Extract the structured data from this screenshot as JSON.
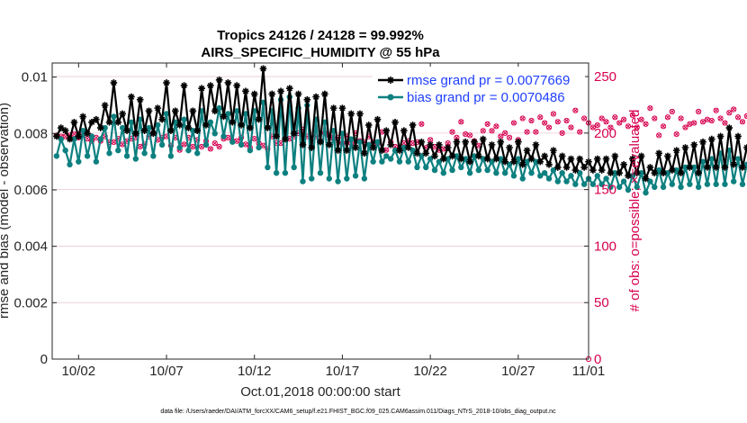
{
  "chart_data": {
    "type": "line",
    "title_line1": "Tropics 24126 / 24128 = 99.992%",
    "title_line2": "AIRS_SPECIFIC_HUMIDITY @ 55 hPa",
    "xlabel": "Oct.01,2018 00:00:00 start",
    "ylabel_left": "rmse and bias (model - observation)",
    "ylabel_right": "# of obs: o=possible; ×=evaluated",
    "xlim": [
      0.5,
      31
    ],
    "ylim_left": [
      0,
      0.0105
    ],
    "ylim_right": [
      0,
      262
    ],
    "x_ticks": [
      2,
      7,
      12,
      17,
      22,
      27,
      32
    ],
    "x_tick_labels": [
      "10/02",
      "10/07",
      "10/12",
      "10/17",
      "10/22",
      "10/27",
      "11/01"
    ],
    "y_left_ticks": [
      0,
      0.002,
      0.004,
      0.006,
      0.008,
      0.01
    ],
    "y_left_tick_labels": [
      "0",
      "0.002",
      "0.004",
      "0.006",
      "0.008",
      "0.01"
    ],
    "y_right_ticks": [
      0,
      50,
      100,
      150,
      200,
      250
    ],
    "y_right_tick_labels": [
      "0",
      "50",
      "100",
      "150",
      "200",
      "250"
    ],
    "colors": {
      "rmse": "#000000",
      "bias": "#0e8080",
      "counts": "#d6004f",
      "grid": "#e8c8d2",
      "legend_text": "#1f3fff"
    },
    "legend": [
      {
        "name": "rmse grand pr = 0.0077669",
        "series": "rmse"
      },
      {
        "name": "bias grand pr = 0.0070486",
        "series": "bias"
      }
    ],
    "x_start": 0.75,
    "x_step": 0.25,
    "series": [
      {
        "name": "rmse",
        "values": [
          0.0079,
          0.0082,
          0.0081,
          0.0078,
          0.0084,
          0.0079,
          0.0086,
          0.008,
          0.0084,
          0.0085,
          0.0082,
          0.009,
          0.0084,
          0.0098,
          0.0084,
          0.0087,
          0.0081,
          0.0093,
          0.008,
          0.0092,
          0.0081,
          0.0088,
          0.008,
          0.0089,
          0.0085,
          0.0098,
          0.0081,
          0.0088,
          0.0083,
          0.0097,
          0.0082,
          0.0088,
          0.0081,
          0.0096,
          0.0083,
          0.0097,
          0.0088,
          0.0099,
          0.0086,
          0.0098,
          0.0084,
          0.0097,
          0.0083,
          0.0095,
          0.0082,
          0.0094,
          0.0085,
          0.0103,
          0.0082,
          0.0094,
          0.0079,
          0.0095,
          0.0078,
          0.0096,
          0.008,
          0.0094,
          0.0076,
          0.0092,
          0.0075,
          0.0093,
          0.0077,
          0.0094,
          0.0076,
          0.0089,
          0.0074,
          0.0089,
          0.0074,
          0.0087,
          0.0075,
          0.0087,
          0.0073,
          0.0083,
          0.0075,
          0.0085,
          0.0074,
          0.0081,
          0.0076,
          0.0084,
          0.0074,
          0.0081,
          0.0075,
          0.0083,
          0.0073,
          0.0077,
          0.0073,
          0.0076,
          0.0072,
          0.0076,
          0.0071,
          0.0075,
          0.0072,
          0.0077,
          0.0071,
          0.0077,
          0.007,
          0.0077,
          0.0072,
          0.0078,
          0.0071,
          0.0076,
          0.0071,
          0.0077,
          0.007,
          0.0075,
          0.007,
          0.0077,
          0.0069,
          0.0074,
          0.0071,
          0.0076,
          0.007,
          0.0072,
          0.0069,
          0.0074,
          0.0068,
          0.0072,
          0.0068,
          0.0071,
          0.0067,
          0.0071,
          0.0068,
          0.007,
          0.0067,
          0.0071,
          0.0067,
          0.0071,
          0.0066,
          0.0072,
          0.0066,
          0.0069,
          0.0065,
          0.0071,
          0.0066,
          0.0072,
          0.0064,
          0.0068,
          0.0066,
          0.0073,
          0.0066,
          0.0072,
          0.0067,
          0.0074,
          0.0066,
          0.0075,
          0.0068,
          0.0076,
          0.0066,
          0.0077,
          0.0068,
          0.0078,
          0.0068,
          0.0079,
          0.0068,
          0.0082,
          0.0069,
          0.0079,
          0.0068,
          0.0075,
          0.0069,
          0.0074,
          0.0068,
          0.0077,
          0.0068,
          0.0072
        ]
      },
      {
        "name": "bias",
        "values": [
          0.0072,
          0.0078,
          0.0074,
          0.0069,
          0.0078,
          0.007,
          0.0081,
          0.0072,
          0.0079,
          0.007,
          0.0078,
          0.0082,
          0.0073,
          0.0086,
          0.0074,
          0.0082,
          0.0072,
          0.0084,
          0.0071,
          0.0085,
          0.0073,
          0.0082,
          0.0072,
          0.0083,
          0.0076,
          0.0087,
          0.0072,
          0.0084,
          0.0075,
          0.0085,
          0.0074,
          0.0081,
          0.0073,
          0.0088,
          0.0076,
          0.0084,
          0.008,
          0.0089,
          0.0079,
          0.0087,
          0.0077,
          0.0088,
          0.0076,
          0.0087,
          0.0074,
          0.0088,
          0.0075,
          0.0091,
          0.0068,
          0.0088,
          0.0066,
          0.0092,
          0.0066,
          0.0093,
          0.0068,
          0.0089,
          0.0063,
          0.009,
          0.0064,
          0.0085,
          0.0066,
          0.0084,
          0.0064,
          0.0081,
          0.0063,
          0.008,
          0.0064,
          0.0078,
          0.0065,
          0.0077,
          0.0064,
          0.0076,
          0.007,
          0.0077,
          0.007,
          0.0072,
          0.0071,
          0.0074,
          0.007,
          0.0075,
          0.007,
          0.0074,
          0.0068,
          0.0072,
          0.0068,
          0.0071,
          0.0067,
          0.007,
          0.0066,
          0.0071,
          0.0067,
          0.0072,
          0.0068,
          0.0071,
          0.0066,
          0.0072,
          0.0067,
          0.0071,
          0.0067,
          0.007,
          0.0066,
          0.0071,
          0.0066,
          0.0069,
          0.0065,
          0.0071,
          0.0064,
          0.007,
          0.0066,
          0.007,
          0.0065,
          0.0066,
          0.0064,
          0.0067,
          0.0063,
          0.0066,
          0.0063,
          0.0065,
          0.0062,
          0.0066,
          0.0062,
          0.0064,
          0.0062,
          0.0065,
          0.0062,
          0.0064,
          0.0061,
          0.0066,
          0.0061,
          0.0063,
          0.006,
          0.0065,
          0.0061,
          0.0066,
          0.0059,
          0.0063,
          0.0061,
          0.0067,
          0.0061,
          0.0066,
          0.0062,
          0.0067,
          0.0061,
          0.0068,
          0.0062,
          0.0068,
          0.0061,
          0.007,
          0.0062,
          0.0071,
          0.0062,
          0.0073,
          0.0062,
          0.0074,
          0.0063,
          0.0071,
          0.0062,
          0.0069,
          0.0063,
          0.0066,
          0.0062,
          0.0069,
          0.0063,
          0.0066
        ]
      },
      {
        "name": "counts",
        "values": [
          198,
          197,
          197,
          198,
          199,
          196,
          200,
          195,
          193,
          196,
          193,
          197,
          192,
          192,
          195,
          190,
          193,
          195,
          196,
          188,
          190,
          197,
          200,
          194,
          196,
          197,
          189,
          196,
          185,
          190,
          196,
          188,
          194,
          188,
          193,
          186,
          191,
          188,
          195,
          196,
          193,
          193,
          196,
          190,
          187,
          195,
          191,
          189,
          186,
          197,
          191,
          191,
          200,
          195,
          197,
          200,
          203,
          197,
          192,
          197,
          193,
          200,
          198,
          195,
          196,
          191,
          197,
          191,
          200,
          193,
          192,
          197,
          192,
          191,
          201,
          185,
          192,
          188,
          186,
          191,
          193,
          191,
          192,
          208,
          187,
          194,
          188,
          185,
          186,
          191,
          201,
          196,
          210,
          199,
          198,
          193,
          189,
          202,
          208,
          202,
          206,
          197,
          200,
          196,
          209,
          194,
          213,
          201,
          211,
          201,
          214,
          209,
          205,
          217,
          210,
          200,
          211,
          205,
          220,
          201,
          213,
          209,
          205,
          207,
          213,
          210,
          205,
          214,
          209,
          212,
          206,
          216,
          205,
          212,
          208,
          222,
          213,
          198,
          206,
          214,
          219,
          199,
          213,
          205,
          208,
          209,
          219,
          210,
          212,
          211,
          220,
          213,
          209,
          218,
          221,
          214,
          210,
          215,
          222,
          216,
          218,
          210,
          216,
          216
        ]
      }
    ]
  },
  "footnote": "data file: /Users/raeder/DAI/ATM_forcXX/CAM6_setup/f.e21.FHIST_BGC.f09_025.CAM6assim.011/Diags_NTrS_2018-10/obs_diag_output.nc"
}
